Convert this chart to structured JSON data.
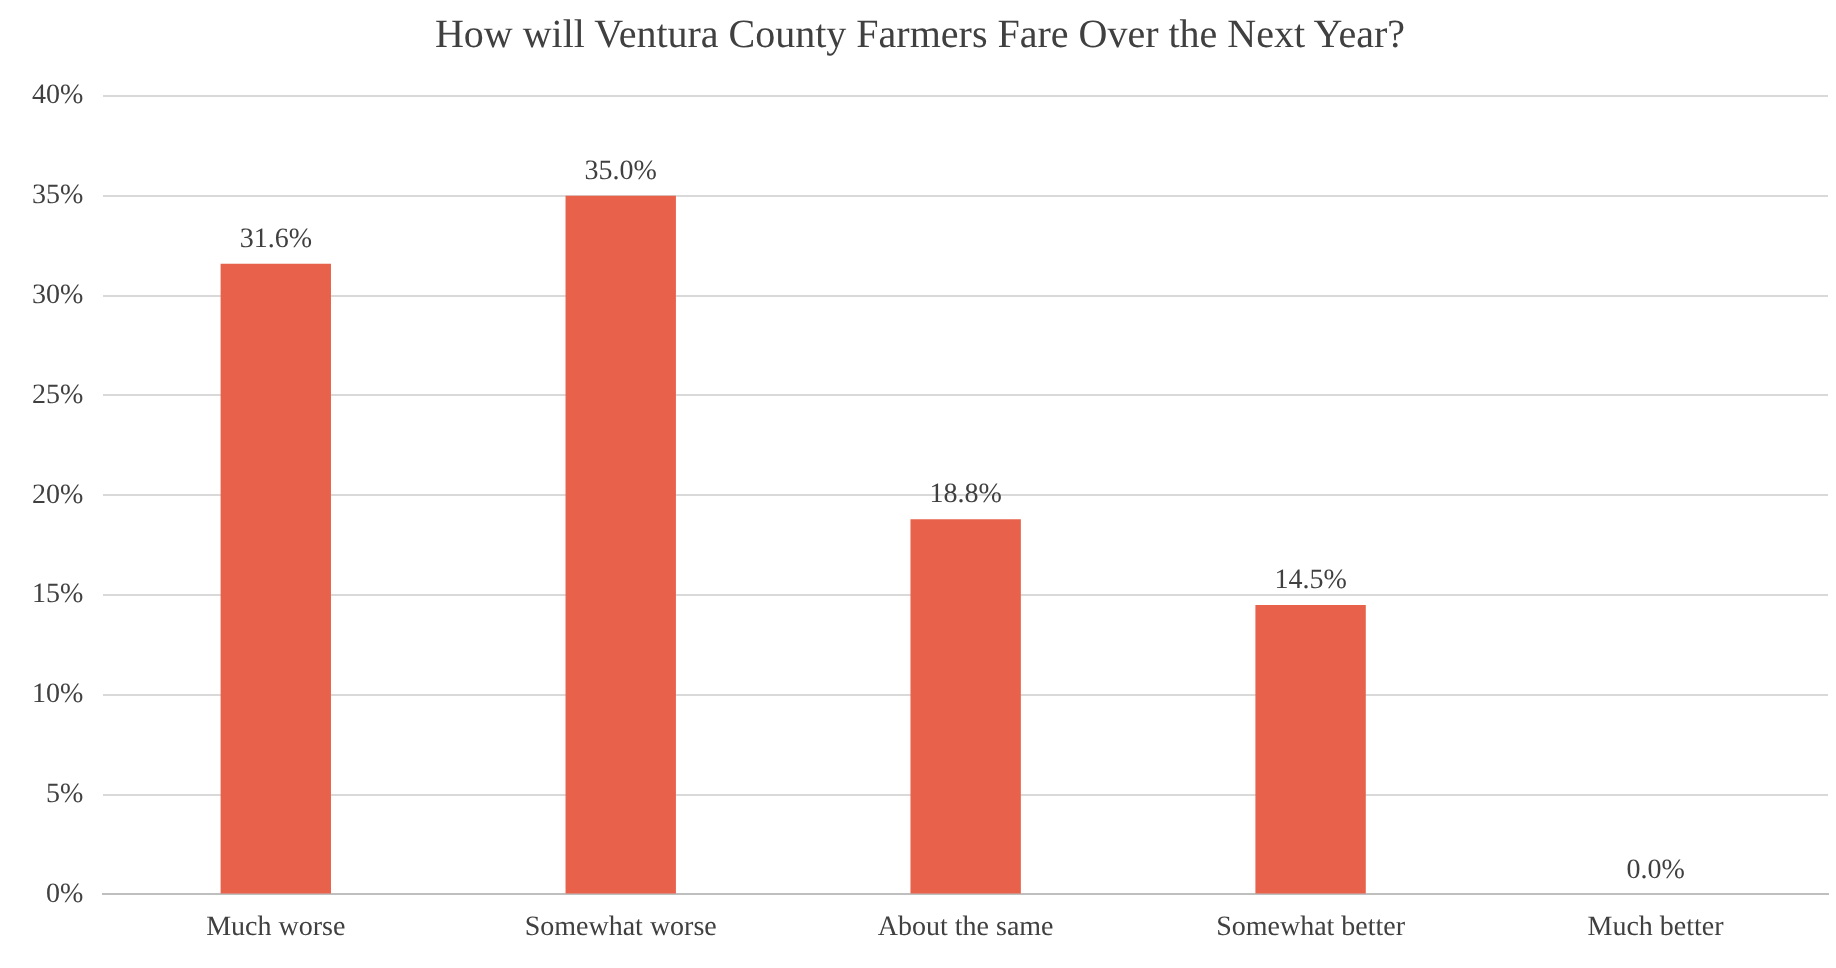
{
  "chart_data": {
    "type": "bar",
    "title": "How will Ventura County Farmers Fare Over the Next Year?",
    "categories": [
      "Much worse",
      "Somewhat worse",
      "About the same",
      "Somewhat better",
      "Much better"
    ],
    "values": [
      31.6,
      35.0,
      18.8,
      14.5,
      0.0
    ],
    "value_labels": [
      "31.6%",
      "35.0%",
      "18.8%",
      "14.5%",
      "0.0%"
    ],
    "color": "#e8614a",
    "ylim": [
      0,
      40
    ],
    "yticks": [
      {
        "value": 0,
        "label": "0%"
      },
      {
        "value": 5,
        "label": "5%"
      },
      {
        "value": 10,
        "label": "10%"
      },
      {
        "value": 15,
        "label": "15%"
      },
      {
        "value": 20,
        "label": "20%"
      },
      {
        "value": 25,
        "label": "25%"
      },
      {
        "value": 30,
        "label": "30%"
      },
      {
        "value": 35,
        "label": "35%"
      },
      {
        "value": 40,
        "label": "40%"
      }
    ],
    "grid": "y"
  }
}
